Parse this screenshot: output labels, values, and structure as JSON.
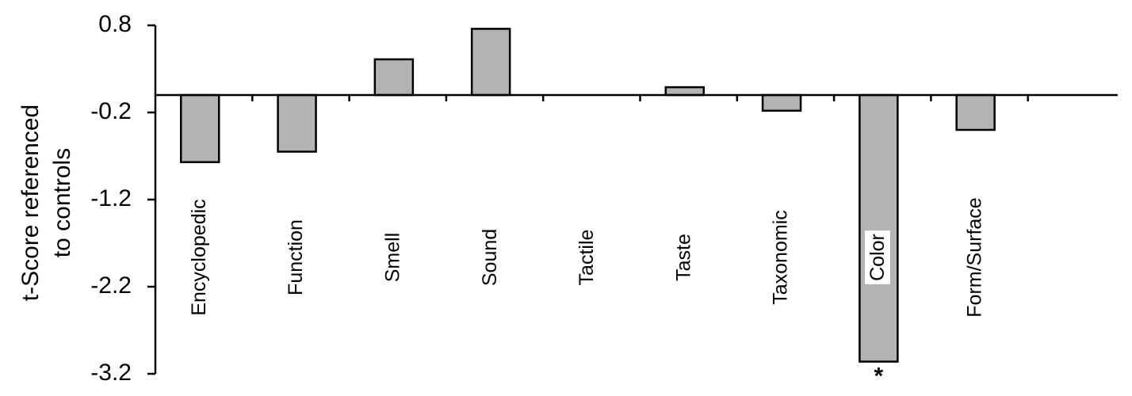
{
  "chart_data": {
    "type": "bar",
    "ylabel": [
      "t-Score referenced",
      "to controls"
    ],
    "categories": [
      "Encyclopedic",
      "Function",
      "Smell",
      "Sound",
      "Tactile",
      "Taste",
      "Taxonomic",
      "Color",
      "Form/Surface"
    ],
    "values": [
      -0.77,
      -0.65,
      0.41,
      0.76,
      0,
      0.09,
      -0.18,
      -3.06,
      -0.4
    ],
    "color": "#b3b3b3",
    "ylim": [
      -3.2,
      0.8
    ],
    "yticks": [
      0.8,
      -0.2,
      -1.2,
      -2.2,
      -3.2
    ],
    "annotation": {
      "text": "*",
      "category": "Color"
    }
  }
}
